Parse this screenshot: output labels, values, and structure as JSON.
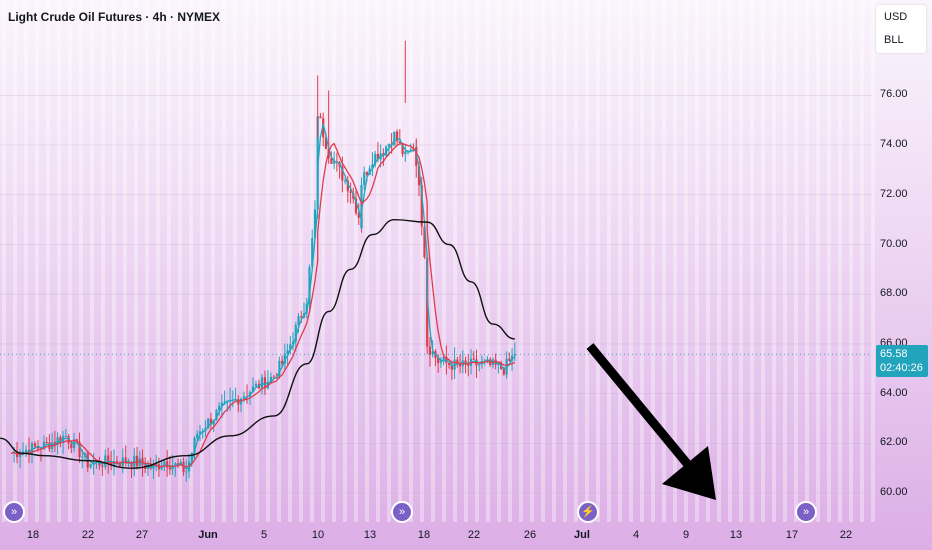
{
  "title": "Light Crude Oil Futures · 4h · NYMEX",
  "currency": "USD",
  "unit": "BLL",
  "last_price": "65.58",
  "countdown": "02:40:26",
  "colors": {
    "up": "#22a4bd",
    "down": "#e03b4a",
    "slow_ma": "#111111"
  },
  "x_labels": [
    {
      "text": "18",
      "bold": false
    },
    {
      "text": "22",
      "bold": false
    },
    {
      "text": "27",
      "bold": false
    },
    {
      "text": "Jun",
      "bold": true
    },
    {
      "text": "5",
      "bold": false
    },
    {
      "text": "10",
      "bold": false
    },
    {
      "text": "13",
      "bold": false
    },
    {
      "text": "18",
      "bold": false
    },
    {
      "text": "22",
      "bold": false
    },
    {
      "text": "26",
      "bold": false
    },
    {
      "text": "Jul",
      "bold": true
    },
    {
      "text": "4",
      "bold": false
    },
    {
      "text": "9",
      "bold": false
    },
    {
      "text": "13",
      "bold": false
    },
    {
      "text": "17",
      "bold": false
    },
    {
      "text": "22",
      "bold": false
    }
  ],
  "event_icons": [
    {
      "icon": "fast-forward-icon",
      "glyph": "»"
    },
    {
      "icon": "fast-forward-icon",
      "glyph": "»"
    },
    {
      "icon": "lightning-icon",
      "glyph": "⚡"
    },
    {
      "icon": "fast-forward-icon",
      "glyph": "»"
    }
  ],
  "chart_data": {
    "type": "candlestick",
    "title": "Light Crude Oil Futures · 4h · NYMEX",
    "y_ticks": [
      "60.00",
      "62.00",
      "64.00",
      "66.00",
      "68.00",
      "70.00",
      "72.00",
      "74.00",
      "76.00"
    ],
    "ylim": [
      59.2,
      78.6
    ],
    "y_axis_side": "right",
    "grid": "faint horizontal",
    "last_price": 65.58,
    "series": [
      {
        "name": "price_anchors",
        "points": [
          {
            "x": "May 16",
            "y": 61.6
          },
          {
            "x": "May 19",
            "y": 61.9
          },
          {
            "x": "May 21",
            "y": 62.3
          },
          {
            "x": "May 22",
            "y": 61.8
          },
          {
            "x": "May 23",
            "y": 61.2
          },
          {
            "x": "May 27",
            "y": 61.3
          },
          {
            "x": "May 29",
            "y": 61.0
          },
          {
            "x": "May 30",
            "y": 61.3
          },
          {
            "x": "Jun 1",
            "y": 60.9
          },
          {
            "x": "Jun 2",
            "y": 62.4
          },
          {
            "x": "Jun 4",
            "y": 63.3
          },
          {
            "x": "Jun 5",
            "y": 63.6
          },
          {
            "x": "Jun 6",
            "y": 63.9
          },
          {
            "x": "Jun 9",
            "y": 64.7
          },
          {
            "x": "Jun 10",
            "y": 65.4
          },
          {
            "x": "Jun 11",
            "y": 66.6
          },
          {
            "x": "Jun 12",
            "y": 67.8
          },
          {
            "x": "Jun 13",
            "y": 72.5
          },
          {
            "x": "Jun 13",
            "y": 75.3
          },
          {
            "x": "Jun 14",
            "y": 73.7
          },
          {
            "x": "Jun 16",
            "y": 72.2
          },
          {
            "x": "Jun 17",
            "y": 70.8
          },
          {
            "x": "Jun 17",
            "y": 72.5
          },
          {
            "x": "Jun 18",
            "y": 73.5
          },
          {
            "x": "Jun 19",
            "y": 73.8
          },
          {
            "x": "Jun 20",
            "y": 74.4
          },
          {
            "x": "Jun 21",
            "y": 73.5
          },
          {
            "x": "Jun 22",
            "y": 74.0
          },
          {
            "x": "Jun 22",
            "y": 73.4
          },
          {
            "x": "Jun 23",
            "y": 68.5
          },
          {
            "x": "Jun 23",
            "y": 66.0
          },
          {
            "x": "Jun 24",
            "y": 65.3
          },
          {
            "x": "Jun 26",
            "y": 65.1
          },
          {
            "x": "Jun 28",
            "y": 65.2
          },
          {
            "x": "Jun 30",
            "y": 65.0
          },
          {
            "x": "Jul 1",
            "y": 65.58
          }
        ]
      },
      {
        "name": "slow_ma",
        "points": [
          {
            "x": "May 15",
            "y": 62.2
          },
          {
            "x": "May 17",
            "y": 61.6
          },
          {
            "x": "May 19",
            "y": 61.5
          },
          {
            "x": "May 23",
            "y": 61.3
          },
          {
            "x": "May 27",
            "y": 61.0
          },
          {
            "x": "Jun 1",
            "y": 61.5
          },
          {
            "x": "Jun 5",
            "y": 62.3
          },
          {
            "x": "Jun 9",
            "y": 63.1
          },
          {
            "x": "Jun 12",
            "y": 65.2
          },
          {
            "x": "Jun 14",
            "y": 67.3
          },
          {
            "x": "Jun 16",
            "y": 69.0
          },
          {
            "x": "Jun 18",
            "y": 70.4
          },
          {
            "x": "Jun 20",
            "y": 71.0
          },
          {
            "x": "Jun 23",
            "y": 70.9
          },
          {
            "x": "Jun 25",
            "y": 70.0
          },
          {
            "x": "Jun 27",
            "y": 68.5
          },
          {
            "x": "Jun 29",
            "y": 66.8
          },
          {
            "x": "Jul 1",
            "y": 66.2
          }
        ]
      }
    ],
    "annotation": {
      "type": "arrow",
      "direction": "down-right",
      "from": {
        "x": "Jul 1",
        "y": 65.8
      },
      "to": {
        "x": "Jul 12",
        "y": 59.5
      }
    }
  }
}
